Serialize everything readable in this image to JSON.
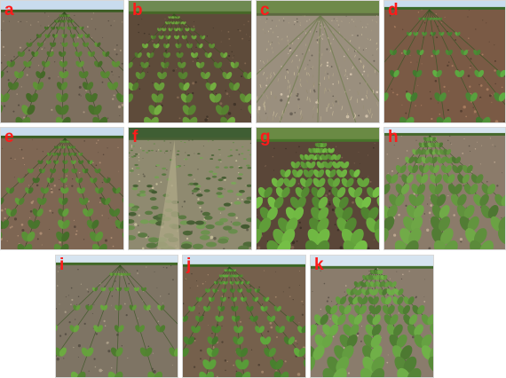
{
  "panels": [
    {
      "id": "a",
      "label": "a",
      "soil": "#7d6f5e",
      "plant": "#4f7a2e",
      "sky": "#c9dcee",
      "style": "rows"
    },
    {
      "id": "b",
      "label": "b",
      "soil": "#5e4b3a",
      "plant": "#5d8c34",
      "sky": "#6e8a52",
      "style": "dark-rows"
    },
    {
      "id": "c",
      "label": "c",
      "soil": "#9a8f7e",
      "plant": "#7a8a55",
      "sky": "#6f8a4a",
      "style": "stubble"
    },
    {
      "id": "d",
      "label": "d",
      "soil": "#7a5a45",
      "plant": "#4d8c36",
      "sky": "#c9dcee",
      "style": "sparse"
    },
    {
      "id": "e",
      "label": "e",
      "soil": "#7e6653",
      "plant": "#4f7f30",
      "sky": "#c9dcee",
      "style": "rows"
    },
    {
      "id": "f",
      "label": "f",
      "soil": "#8f8a70",
      "plant": "#5f7f45",
      "sky": "#3f5e33",
      "style": "weedy"
    },
    {
      "id": "g",
      "label": "g",
      "soil": "#5a4638",
      "plant": "#5e9a38",
      "sky": "#6a8a44",
      "style": "beet-rows"
    },
    {
      "id": "h",
      "label": "h",
      "soil": "#8b7b6a",
      "plant": "#5b8a3a",
      "sky": "#d6e4f0",
      "style": "beet-rows"
    },
    {
      "id": "i",
      "label": "i",
      "soil": "#7e7464",
      "plant": "#578a34",
      "sky": "#d6e4f0",
      "style": "sparse"
    },
    {
      "id": "j",
      "label": "j",
      "soil": "#75604c",
      "plant": "#4f8a32",
      "sky": "#cfe0ee",
      "style": "rows"
    },
    {
      "id": "k",
      "label": "k",
      "soil": "#8a7c6c",
      "plant": "#5a8e3a",
      "sky": "#d6e4f0",
      "style": "beet-rows"
    }
  ]
}
